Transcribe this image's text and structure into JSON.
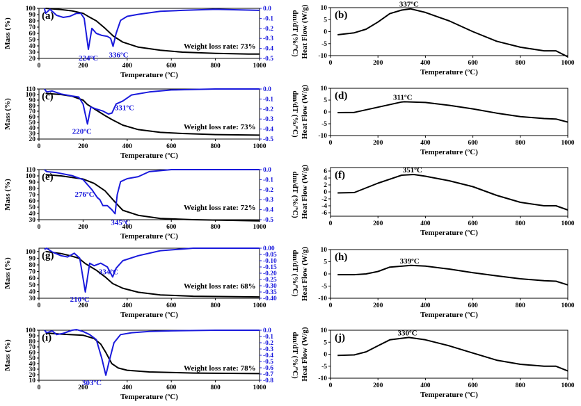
{
  "colors": {
    "mass": "#000000",
    "dmdt": "#1a1adc",
    "heat": "#000000"
  },
  "chart_data": [
    {
      "type": "line",
      "panel_label": "(a)",
      "xlabel": "Temperature (ºC)",
      "ylabel": "Mass (%)",
      "ylabel2": "dm/dT (%/ºC)",
      "xlim": [
        0,
        1000
      ],
      "xticks": [
        "0",
        "200",
        "400",
        "600",
        "800",
        "1000"
      ],
      "ylim": [
        20,
        100
      ],
      "yticks": [
        "20",
        "30",
        "40",
        "50",
        "60",
        "70",
        "80",
        "90",
        "100"
      ],
      "ylim2": [
        -0.5,
        0.0
      ],
      "yticks2": [
        "-0.5",
        "-0.4",
        "-0.3",
        "-0.2",
        "-0.1",
        "0.0"
      ],
      "annotations": [
        "224ºC",
        "336ºC"
      ],
      "note": "Weight loss rate: 73%",
      "mass": [
        [
          30,
          100
        ],
        [
          100,
          98
        ],
        [
          150,
          96
        ],
        [
          200,
          92
        ],
        [
          224,
          87
        ],
        [
          260,
          80
        ],
        [
          300,
          68
        ],
        [
          336,
          56
        ],
        [
          380,
          46
        ],
        [
          450,
          38
        ],
        [
          550,
          33
        ],
        [
          650,
          30
        ],
        [
          800,
          28
        ],
        [
          950,
          27
        ],
        [
          1000,
          27
        ]
      ],
      "dmdt": [
        [
          25,
          0
        ],
        [
          30,
          -0.05
        ],
        [
          50,
          -0.01
        ],
        [
          80,
          -0.07
        ],
        [
          110,
          -0.09
        ],
        [
          140,
          -0.08
        ],
        [
          170,
          -0.05
        ],
        [
          190,
          -0.05
        ],
        [
          205,
          -0.1
        ],
        [
          224,
          -0.41
        ],
        [
          240,
          -0.2
        ],
        [
          260,
          -0.25
        ],
        [
          285,
          -0.27
        ],
        [
          310,
          -0.28
        ],
        [
          325,
          -0.3
        ],
        [
          336,
          -0.38
        ],
        [
          350,
          -0.25
        ],
        [
          370,
          -0.12
        ],
        [
          400,
          -0.08
        ],
        [
          450,
          -0.06
        ],
        [
          550,
          -0.03
        ],
        [
          650,
          -0.02
        ],
        [
          800,
          -0.01
        ],
        [
          1000,
          -0.02
        ]
      ]
    },
    {
      "type": "line",
      "panel_label": "(b)",
      "xlabel": "Temperature (ºC)",
      "ylabel": "Heat Flow (W/g)",
      "xlim": [
        0,
        1000
      ],
      "xticks": [
        "0",
        "200",
        "400",
        "600",
        "800",
        "1000"
      ],
      "ylim": [
        -10,
        10
      ],
      "yticks": [
        "-10",
        "-5",
        "0",
        "5",
        "10"
      ],
      "annotations": [
        "337ºC"
      ],
      "heat": [
        [
          30,
          -1.3
        ],
        [
          100,
          -0.5
        ],
        [
          150,
          1
        ],
        [
          200,
          4
        ],
        [
          250,
          7.5
        ],
        [
          300,
          9
        ],
        [
          337,
          9.5
        ],
        [
          400,
          8
        ],
        [
          500,
          4.5
        ],
        [
          600,
          0
        ],
        [
          700,
          -4
        ],
        [
          800,
          -6.5
        ],
        [
          900,
          -8
        ],
        [
          950,
          -8
        ],
        [
          1000,
          -10.5
        ]
      ]
    },
    {
      "type": "line",
      "panel_label": "(c)",
      "xlabel": "Temperature (ºC)",
      "ylabel": "Mass (%)",
      "ylabel2": "dm/dT (%/ºC)",
      "xlim": [
        0,
        1000
      ],
      "xticks": [
        "0",
        "200",
        "400",
        "600",
        "800",
        "1000"
      ],
      "ylim": [
        20,
        110
      ],
      "yticks": [
        "20",
        "30",
        "40",
        "50",
        "60",
        "70",
        "80",
        "90",
        "100",
        "110"
      ],
      "ylim2": [
        -0.5,
        0.0
      ],
      "yticks2": [
        "-0.5",
        "-0.4",
        "-0.3",
        "-0.2",
        "-0.1",
        "0.0"
      ],
      "annotations": [
        "220ºC",
        "331ºC"
      ],
      "note": "Weight loss rate: 73%",
      "mass": [
        [
          30,
          102
        ],
        [
          100,
          100
        ],
        [
          150,
          97
        ],
        [
          200,
          90
        ],
        [
          220,
          82
        ],
        [
          260,
          72
        ],
        [
          300,
          62
        ],
        [
          331,
          55
        ],
        [
          380,
          45
        ],
        [
          450,
          37
        ],
        [
          550,
          32
        ],
        [
          650,
          30
        ],
        [
          800,
          28
        ],
        [
          1000,
          27
        ]
      ],
      "dmdt": [
        [
          25,
          0
        ],
        [
          35,
          -0.03
        ],
        [
          60,
          -0.02
        ],
        [
          100,
          -0.05
        ],
        [
          150,
          -0.07
        ],
        [
          180,
          -0.08
        ],
        [
          200,
          -0.15
        ],
        [
          220,
          -0.35
        ],
        [
          235,
          -0.18
        ],
        [
          260,
          -0.2
        ],
        [
          290,
          -0.22
        ],
        [
          315,
          -0.25
        ],
        [
          331,
          -0.24
        ],
        [
          350,
          -0.15
        ],
        [
          380,
          -0.12
        ],
        [
          420,
          -0.06
        ],
        [
          500,
          -0.03
        ],
        [
          600,
          -0.01
        ],
        [
          800,
          0
        ],
        [
          1000,
          0
        ]
      ]
    },
    {
      "type": "line",
      "panel_label": "(d)",
      "xlabel": "Temperature (ºC)",
      "ylabel": "Heat Flow (W/g)",
      "xlim": [
        0,
        1000
      ],
      "xticks": [
        "0",
        "200",
        "400",
        "600",
        "800",
        "1000"
      ],
      "ylim": [
        -10,
        10
      ],
      "yticks": [
        "-10",
        "-5",
        "0",
        "5",
        "10"
      ],
      "annotations": [
        "311ºC"
      ],
      "heat": [
        [
          30,
          -0.3
        ],
        [
          100,
          -0.2
        ],
        [
          200,
          2
        ],
        [
          300,
          4.2
        ],
        [
          311,
          4.3
        ],
        [
          400,
          4
        ],
        [
          500,
          2.8
        ],
        [
          600,
          1.3
        ],
        [
          700,
          -0.5
        ],
        [
          800,
          -2
        ],
        [
          900,
          -2.8
        ],
        [
          950,
          -3
        ],
        [
          1000,
          -4.3
        ]
      ]
    },
    {
      "type": "line",
      "panel_label": "(e)",
      "xlabel": "Temperature (ºC)",
      "ylabel": "Mass (%)",
      "ylabel2": "dm/dT (%/ºC)",
      "xlim": [
        0,
        1000
      ],
      "xticks": [
        "0",
        "200",
        "400",
        "600",
        "800",
        "1000"
      ],
      "ylim": [
        30,
        110
      ],
      "yticks": [
        "30",
        "40",
        "50",
        "60",
        "70",
        "80",
        "90",
        "100",
        "110"
      ],
      "ylim2": [
        -0.5,
        0.0
      ],
      "yticks2": [
        "-0.5",
        "-0.4",
        "-0.3",
        "-0.2",
        "-0.1",
        "0.0"
      ],
      "annotations": [
        "276ºC",
        "345ºC"
      ],
      "note": "Weight loss rate: 72%",
      "mass": [
        [
          30,
          102
        ],
        [
          100,
          100
        ],
        [
          200,
          95
        ],
        [
          250,
          88
        ],
        [
          300,
          76
        ],
        [
          345,
          58
        ],
        [
          380,
          45
        ],
        [
          450,
          37
        ],
        [
          550,
          32
        ],
        [
          700,
          30
        ],
        [
          1000,
          28
        ]
      ],
      "dmdt": [
        [
          25,
          0
        ],
        [
          35,
          -0.02
        ],
        [
          80,
          -0.03
        ],
        [
          150,
          -0.06
        ],
        [
          200,
          -0.1
        ],
        [
          240,
          -0.2
        ],
        [
          265,
          -0.28
        ],
        [
          276,
          -0.3
        ],
        [
          290,
          -0.36
        ],
        [
          310,
          -0.36
        ],
        [
          330,
          -0.4
        ],
        [
          345,
          -0.44
        ],
        [
          355,
          -0.25
        ],
        [
          370,
          -0.12
        ],
        [
          400,
          -0.09
        ],
        [
          450,
          -0.07
        ],
        [
          500,
          -0.02
        ],
        [
          600,
          0
        ],
        [
          1000,
          0
        ]
      ]
    },
    {
      "type": "line",
      "panel_label": "(f)",
      "xlabel": "Temperature (ºC)",
      "ylabel": "Heat Flow (W/g)",
      "xlim": [
        0,
        1000
      ],
      "xticks": [
        "0",
        "200",
        "400",
        "600",
        "800",
        "1000"
      ],
      "ylim": [
        -7,
        7
      ],
      "yticks": [
        "-6",
        "-4",
        "-2",
        "0",
        "2",
        "4",
        "6"
      ],
      "annotations": [
        "351ºC"
      ],
      "heat": [
        [
          30,
          -0.3
        ],
        [
          100,
          -0.2
        ],
        [
          200,
          2.5
        ],
        [
          300,
          4.8
        ],
        [
          351,
          5
        ],
        [
          400,
          4.5
        ],
        [
          500,
          3.2
        ],
        [
          600,
          1.5
        ],
        [
          700,
          -1
        ],
        [
          800,
          -3
        ],
        [
          900,
          -4
        ],
        [
          950,
          -4
        ],
        [
          1000,
          -5.2
        ]
      ]
    },
    {
      "type": "line",
      "panel_label": "(g)",
      "xlabel": "Temperature (ºC)",
      "ylabel": "Mass (%)",
      "ylabel2": "dm/dT (%/ºC)",
      "xlim": [
        0,
        1000
      ],
      "xticks": [
        "0",
        "200",
        "400",
        "600",
        "800",
        "1000"
      ],
      "ylim": [
        30,
        105
      ],
      "yticks": [
        "30",
        "40",
        "50",
        "60",
        "70",
        "80",
        "90",
        "100"
      ],
      "ylim2": [
        -0.4,
        0.0
      ],
      "yticks2": [
        "-0.40",
        "-0.35",
        "-0.30",
        "-0.25",
        "-0.20",
        "-0.15",
        "-0.10",
        "-0.05",
        "0.00"
      ],
      "annotations": [
        "210ºC",
        "334ºC"
      ],
      "note": "Weight loss rate: 68%",
      "mass": [
        [
          30,
          100
        ],
        [
          100,
          97
        ],
        [
          150,
          93
        ],
        [
          180,
          90
        ],
        [
          210,
          82
        ],
        [
          260,
          72
        ],
        [
          300,
          62
        ],
        [
          334,
          52
        ],
        [
          380,
          45
        ],
        [
          450,
          39
        ],
        [
          550,
          35
        ],
        [
          700,
          33
        ],
        [
          1000,
          32
        ]
      ],
      "dmdt": [
        [
          25,
          -0.01
        ],
        [
          35,
          0
        ],
        [
          60,
          -0.03
        ],
        [
          100,
          -0.06
        ],
        [
          130,
          -0.07
        ],
        [
          160,
          -0.04
        ],
        [
          185,
          -0.08
        ],
        [
          210,
          -0.35
        ],
        [
          230,
          -0.12
        ],
        [
          250,
          -0.14
        ],
        [
          280,
          -0.12
        ],
        [
          310,
          -0.15
        ],
        [
          334,
          -0.23
        ],
        [
          350,
          -0.16
        ],
        [
          380,
          -0.1
        ],
        [
          450,
          -0.06
        ],
        [
          550,
          -0.02
        ],
        [
          700,
          0
        ],
        [
          800,
          0
        ],
        [
          1000,
          0
        ]
      ]
    },
    {
      "type": "line",
      "panel_label": "(h)",
      "xlabel": "Temperature (ºC)",
      "ylabel": "Heat Flow (W/g)",
      "xlim": [
        0,
        1000
      ],
      "xticks": [
        "0",
        "200",
        "400",
        "600",
        "800",
        "1000"
      ],
      "ylim": [
        -10,
        10
      ],
      "yticks": [
        "-10",
        "-5",
        "0",
        "5",
        "10"
      ],
      "annotations": [
        "339ºC"
      ],
      "heat": [
        [
          30,
          -0.3
        ],
        [
          100,
          -0.3
        ],
        [
          150,
          0
        ],
        [
          200,
          1
        ],
        [
          250,
          2.8
        ],
        [
          339,
          3.5
        ],
        [
          400,
          3.2
        ],
        [
          500,
          2
        ],
        [
          600,
          0.5
        ],
        [
          700,
          -0.8
        ],
        [
          800,
          -2
        ],
        [
          900,
          -2.8
        ],
        [
          950,
          -3
        ],
        [
          1000,
          -4.5
        ]
      ]
    },
    {
      "type": "line",
      "panel_label": "(i)",
      "xlabel": "Temperature (ºC)",
      "ylabel": "Mass (%)",
      "ylabel2": "dm/dT (%/ºC)",
      "xlim": [
        0,
        1000
      ],
      "xticks": [
        "0",
        "200",
        "400",
        "600",
        "800",
        "1000"
      ],
      "ylim": [
        10,
        100
      ],
      "yticks": [
        "10",
        "20",
        "30",
        "40",
        "50",
        "60",
        "70",
        "80",
        "90",
        "100"
      ],
      "ylim2": [
        -0.8,
        0.0
      ],
      "yticks2": [
        "-0.8",
        "-0.7",
        "-0.6",
        "-0.5",
        "-0.4",
        "-0.3",
        "-0.2",
        "-0.1",
        "0.0"
      ],
      "annotations": [
        "303ºC"
      ],
      "note": "Weight loss rate: 78%",
      "mass": [
        [
          30,
          95
        ],
        [
          100,
          93
        ],
        [
          200,
          91
        ],
        [
          250,
          85
        ],
        [
          280,
          75
        ],
        [
          303,
          60
        ],
        [
          330,
          40
        ],
        [
          360,
          32
        ],
        [
          400,
          28
        ],
        [
          500,
          25
        ],
        [
          700,
          23
        ],
        [
          1000,
          22
        ]
      ],
      "dmdt": [
        [
          25,
          0
        ],
        [
          35,
          -0.04
        ],
        [
          60,
          -0.01
        ],
        [
          80,
          -0.07
        ],
        [
          110,
          -0.05
        ],
        [
          150,
          0
        ],
        [
          170,
          0.01
        ],
        [
          200,
          -0.02
        ],
        [
          230,
          -0.07
        ],
        [
          260,
          -0.15
        ],
        [
          285,
          -0.45
        ],
        [
          303,
          -0.72
        ],
        [
          318,
          -0.5
        ],
        [
          340,
          -0.2
        ],
        [
          370,
          -0.07
        ],
        [
          420,
          -0.04
        ],
        [
          500,
          -0.02
        ],
        [
          600,
          -0.01
        ],
        [
          800,
          0
        ],
        [
          1000,
          0
        ]
      ]
    },
    {
      "type": "line",
      "panel_label": "(j)",
      "xlabel": "Temperature (ºC)",
      "ylabel": "Heat Flow (W/g)",
      "xlim": [
        0,
        1000
      ],
      "xticks": [
        "0",
        "200",
        "400",
        "600",
        "800",
        "1000"
      ],
      "ylim": [
        -10,
        10
      ],
      "yticks": [
        "-10",
        "-5",
        "0",
        "5",
        "10"
      ],
      "annotations": [
        "330ºC"
      ],
      "heat": [
        [
          30,
          -0.5
        ],
        [
          100,
          -0.3
        ],
        [
          150,
          1
        ],
        [
          200,
          3.5
        ],
        [
          250,
          6
        ],
        [
          330,
          7
        ],
        [
          400,
          6
        ],
        [
          500,
          3.5
        ],
        [
          600,
          0.5
        ],
        [
          700,
          -2.5
        ],
        [
          800,
          -4.2
        ],
        [
          900,
          -5
        ],
        [
          950,
          -5
        ],
        [
          1000,
          -7
        ]
      ]
    }
  ]
}
